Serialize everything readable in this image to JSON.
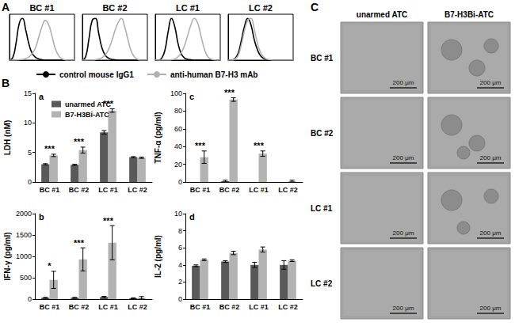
{
  "panels": [
    "A",
    "B",
    "C"
  ],
  "chart_data": [
    {
      "type": "line",
      "title": "BC #1",
      "x": [
        0,
        1,
        2,
        3,
        4,
        5,
        6,
        7,
        8,
        9,
        10,
        11,
        12,
        13,
        14,
        15,
        16,
        17,
        18,
        19,
        20
      ],
      "xlim": [
        0,
        20
      ],
      "ylim": [
        0,
        110
      ],
      "tick_labels": false,
      "grid": false,
      "legend": "bottom",
      "series": [
        {
          "name": "control mouse IgG1",
          "color": "#000000",
          "values": [
            0,
            6,
            40,
            88,
            100,
            72,
            38,
            16,
            7,
            3,
            1,
            0,
            0,
            0,
            0,
            0,
            0,
            0,
            0,
            0,
            0
          ]
        },
        {
          "name": "anti-human B7-H3 mAb",
          "color": "#b0b0b0",
          "values": [
            0,
            0,
            0,
            1,
            2,
            4,
            8,
            16,
            30,
            55,
            80,
            95,
            86,
            60,
            30,
            12,
            4,
            1,
            0,
            0,
            0
          ]
        }
      ]
    },
    {
      "type": "line",
      "title": "BC #2",
      "x": [
        0,
        1,
        2,
        3,
        4,
        5,
        6,
        7,
        8,
        9,
        10,
        11,
        12,
        13,
        14,
        15,
        16,
        17,
        18,
        19,
        20
      ],
      "xlim": [
        0,
        20
      ],
      "ylim": [
        0,
        110
      ],
      "tick_labels": false,
      "grid": false,
      "legend": "bottom",
      "series": [
        {
          "name": "control mouse IgG1",
          "color": "#000000",
          "values": [
            0,
            8,
            50,
            95,
            100,
            65,
            30,
            12,
            5,
            2,
            1,
            0,
            0,
            0,
            0,
            0,
            0,
            0,
            0,
            0,
            0
          ]
        },
        {
          "name": "anti-human B7-H3 mAb",
          "color": "#b0b0b0",
          "values": [
            0,
            0,
            0,
            0,
            1,
            3,
            6,
            12,
            25,
            45,
            70,
            90,
            100,
            80,
            50,
            22,
            8,
            2,
            0,
            0,
            0
          ]
        }
      ]
    },
    {
      "type": "line",
      "title": "LC #1",
      "x": [
        0,
        1,
        2,
        3,
        4,
        5,
        6,
        7,
        8,
        9,
        10,
        11,
        12,
        13,
        14,
        15,
        16,
        17,
        18,
        19,
        20
      ],
      "xlim": [
        0,
        20
      ],
      "ylim": [
        0,
        110
      ],
      "tick_labels": false,
      "grid": false,
      "legend": "bottom",
      "series": [
        {
          "name": "control mouse IgG1",
          "color": "#000000",
          "values": [
            0,
            0,
            5,
            25,
            70,
            100,
            80,
            40,
            15,
            5,
            2,
            1,
            0,
            0,
            0,
            0,
            0,
            0,
            0,
            0,
            0
          ]
        },
        {
          "name": "anti-human B7-H3 mAb",
          "color": "#b0b0b0",
          "values": [
            0,
            0,
            0,
            0,
            0,
            1,
            3,
            8,
            18,
            35,
            60,
            85,
            100,
            90,
            60,
            30,
            10,
            3,
            1,
            0,
            0
          ]
        }
      ]
    },
    {
      "type": "line",
      "title": "LC #2",
      "x": [
        0,
        1,
        2,
        3,
        4,
        5,
        6,
        7,
        8,
        9,
        10,
        11,
        12,
        13,
        14,
        15,
        16,
        17,
        18,
        19,
        20
      ],
      "xlim": [
        0,
        20
      ],
      "ylim": [
        0,
        110
      ],
      "tick_labels": false,
      "grid": false,
      "legend": "bottom",
      "series": [
        {
          "name": "control mouse IgG1",
          "color": "#000000",
          "values": [
            0,
            0,
            3,
            15,
            45,
            80,
            100,
            85,
            50,
            25,
            10,
            4,
            1,
            0,
            0,
            0,
            0,
            0,
            0,
            0,
            0
          ]
        },
        {
          "name": "anti-human B7-H3 mAb",
          "color": "#b0b0b0",
          "values": [
            0,
            0,
            2,
            10,
            35,
            70,
            95,
            100,
            75,
            40,
            18,
            7,
            2,
            1,
            0,
            0,
            0,
            0,
            0,
            0,
            0
          ]
        }
      ]
    },
    {
      "type": "bar",
      "panel": "a",
      "categories": [
        "BC #1",
        "BC #2",
        "LC #1",
        "LC #2"
      ],
      "y_label": "LDH (nM)",
      "ylim": [
        0,
        15
      ],
      "yticks": [
        0,
        5,
        10,
        15
      ],
      "grid": false,
      "legend": "upper left",
      "series": [
        {
          "name": "unarmed ATC",
          "color": "#595959",
          "values": [
            3.0,
            2.9,
            8.4,
            4.2
          ],
          "errors": [
            0.1,
            0.1,
            0.3,
            0.1
          ]
        },
        {
          "name": "B7-H3Bi-ATC",
          "color": "#b3b3b3",
          "values": [
            4.5,
            5.4,
            12.1,
            4.1
          ],
          "errors": [
            0.2,
            0.5,
            0.3,
            0.1
          ]
        }
      ],
      "annotations": [
        "***",
        "***",
        "***",
        null
      ]
    },
    {
      "type": "bar",
      "panel": "b",
      "categories": [
        "BC #1",
        "BC #2",
        "LC #1",
        "LC #2"
      ],
      "y_label": "IFN-γ (pg/ml)",
      "ylim": [
        0,
        2000
      ],
      "yticks": [
        0,
        500,
        1000,
        1500,
        2000
      ],
      "grid": false,
      "series": [
        {
          "name": "unarmed ATC",
          "color": "#595959",
          "values": [
            30,
            30,
            50,
            20
          ],
          "errors": [
            10,
            10,
            15,
            10
          ]
        },
        {
          "name": "B7-H3Bi-ATC",
          "color": "#b3b3b3",
          "values": [
            450,
            930,
            1320,
            30
          ],
          "errors": [
            200,
            270,
            400,
            30
          ]
        }
      ],
      "annotations": [
        "*",
        "***",
        "***",
        null
      ]
    },
    {
      "type": "bar",
      "panel": "c",
      "categories": [
        "BC #1",
        "BC #2",
        "LC #1",
        "LC #2"
      ],
      "y_label": "TNF-α (pg/ml)",
      "ylim": [
        0,
        100
      ],
      "yticks": [
        0,
        20,
        40,
        60,
        80,
        100
      ],
      "grid": false,
      "series": [
        {
          "name": "unarmed ATC",
          "color": "#595959",
          "values": [
            0,
            1,
            0,
            0
          ],
          "errors": [
            0,
            1,
            0,
            0
          ]
        },
        {
          "name": "B7-H3Bi-ATC",
          "color": "#b3b3b3",
          "values": [
            28,
            93,
            32,
            1
          ],
          "errors": [
            7,
            2,
            3,
            1
          ]
        }
      ],
      "annotations": [
        "***",
        "***",
        "***",
        null
      ]
    },
    {
      "type": "bar",
      "panel": "d",
      "categories": [
        "BC #1",
        "BC #2",
        "LC #1",
        "LC #2"
      ],
      "y_label": "IL-2 (pg/ml)",
      "ylim": [
        0,
        10
      ],
      "yticks": [
        0,
        2,
        4,
        6,
        8,
        10
      ],
      "grid": false,
      "series": [
        {
          "name": "unarmed ATC",
          "color": "#595959",
          "values": [
            3.9,
            4.4,
            4.0,
            4.0
          ],
          "errors": [
            0.1,
            0.1,
            0.3,
            0.5
          ]
        },
        {
          "name": "B7-H3Bi-ATC",
          "color": "#b3b3b3",
          "values": [
            4.6,
            5.4,
            5.8,
            4.5
          ],
          "errors": [
            0.1,
            0.2,
            0.3,
            0.1
          ]
        }
      ]
    }
  ],
  "images": {
    "columns": [
      "unarmed ATC",
      "B7-H3Bi-ATC"
    ],
    "rows": [
      "BC #1",
      "BC #2",
      "LC #1",
      "LC #2"
    ],
    "scale_bar": "200 μm"
  }
}
